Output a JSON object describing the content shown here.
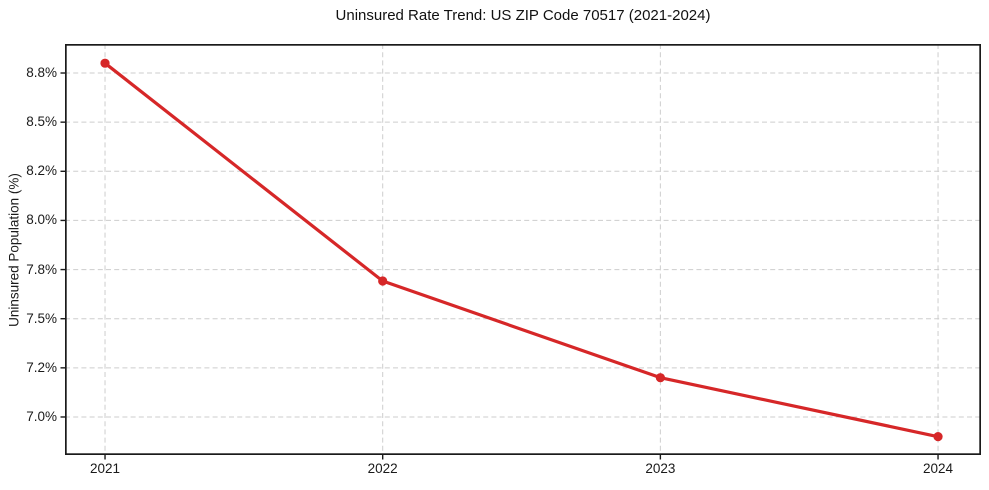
{
  "chart_data": {
    "type": "line",
    "title": "Uninsured Rate Trend: US ZIP Code 70517 (2021-2024)",
    "xlabel": "",
    "ylabel": "Uninsured Population (%)",
    "categories": [
      "2021",
      "2022",
      "2023",
      "2024"
    ],
    "values": [
      8.86,
      7.73,
      7.16,
      6.92
    ],
    "y_ticks": [
      {
        "label": "8.8%",
        "value": 8.8
      },
      {
        "label": "8.5%",
        "value": 8.5
      },
      {
        "label": "8.2%",
        "value": 8.2
      },
      {
        "label": "8.0%",
        "value": 8.0
      },
      {
        "label": "7.8%",
        "value": 7.8
      },
      {
        "label": "7.5%",
        "value": 7.5
      },
      {
        "label": "7.2%",
        "value": 7.2
      },
      {
        "label": "7.0%",
        "value": 7.0
      }
    ],
    "grid": true,
    "grid_style": "dashed",
    "legend": "none",
    "marker": "circle",
    "line_color": "#d62728",
    "grid_color": "#cdcdcd",
    "axis_color": "#1a1a1a",
    "background_color": "#ffffff"
  }
}
